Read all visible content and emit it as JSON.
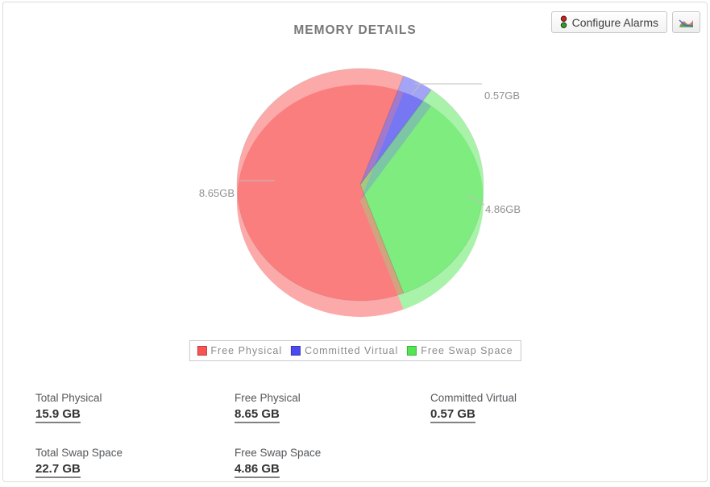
{
  "header": {
    "title": "MEMORY DETAILS"
  },
  "toolbar": {
    "configure_alarms_label": "Configure Alarms",
    "chart_button": "area-chart-icon"
  },
  "chart_data": {
    "type": "pie",
    "title": "MEMORY DETAILS",
    "unit": "GB",
    "style": "3d-translucent",
    "legend_position": "bottom",
    "start_angle_deg": 69.4,
    "clockwise_order": [
      1,
      2,
      0
    ],
    "series": [
      {
        "name": "Free Physical",
        "value": 8.65,
        "label": "8.65GB",
        "color": "#f95454"
      },
      {
        "name": "Committed Virtual",
        "value": 0.57,
        "label": "0.57GB",
        "color": "#4a4af0"
      },
      {
        "name": "Free Swap Space",
        "value": 4.86,
        "label": "4.86GB",
        "color": "#53e653"
      }
    ]
  },
  "stats": {
    "items": [
      {
        "label": "Total Physical",
        "value": "15.9 GB"
      },
      {
        "label": "Free Physical",
        "value": "8.65 GB"
      },
      {
        "label": "Committed Virtual",
        "value": "0.57 GB"
      },
      {
        "label": "Total Swap Space",
        "value": "22.7 GB"
      },
      {
        "label": "Free Swap Space",
        "value": "4.86 GB"
      }
    ]
  }
}
